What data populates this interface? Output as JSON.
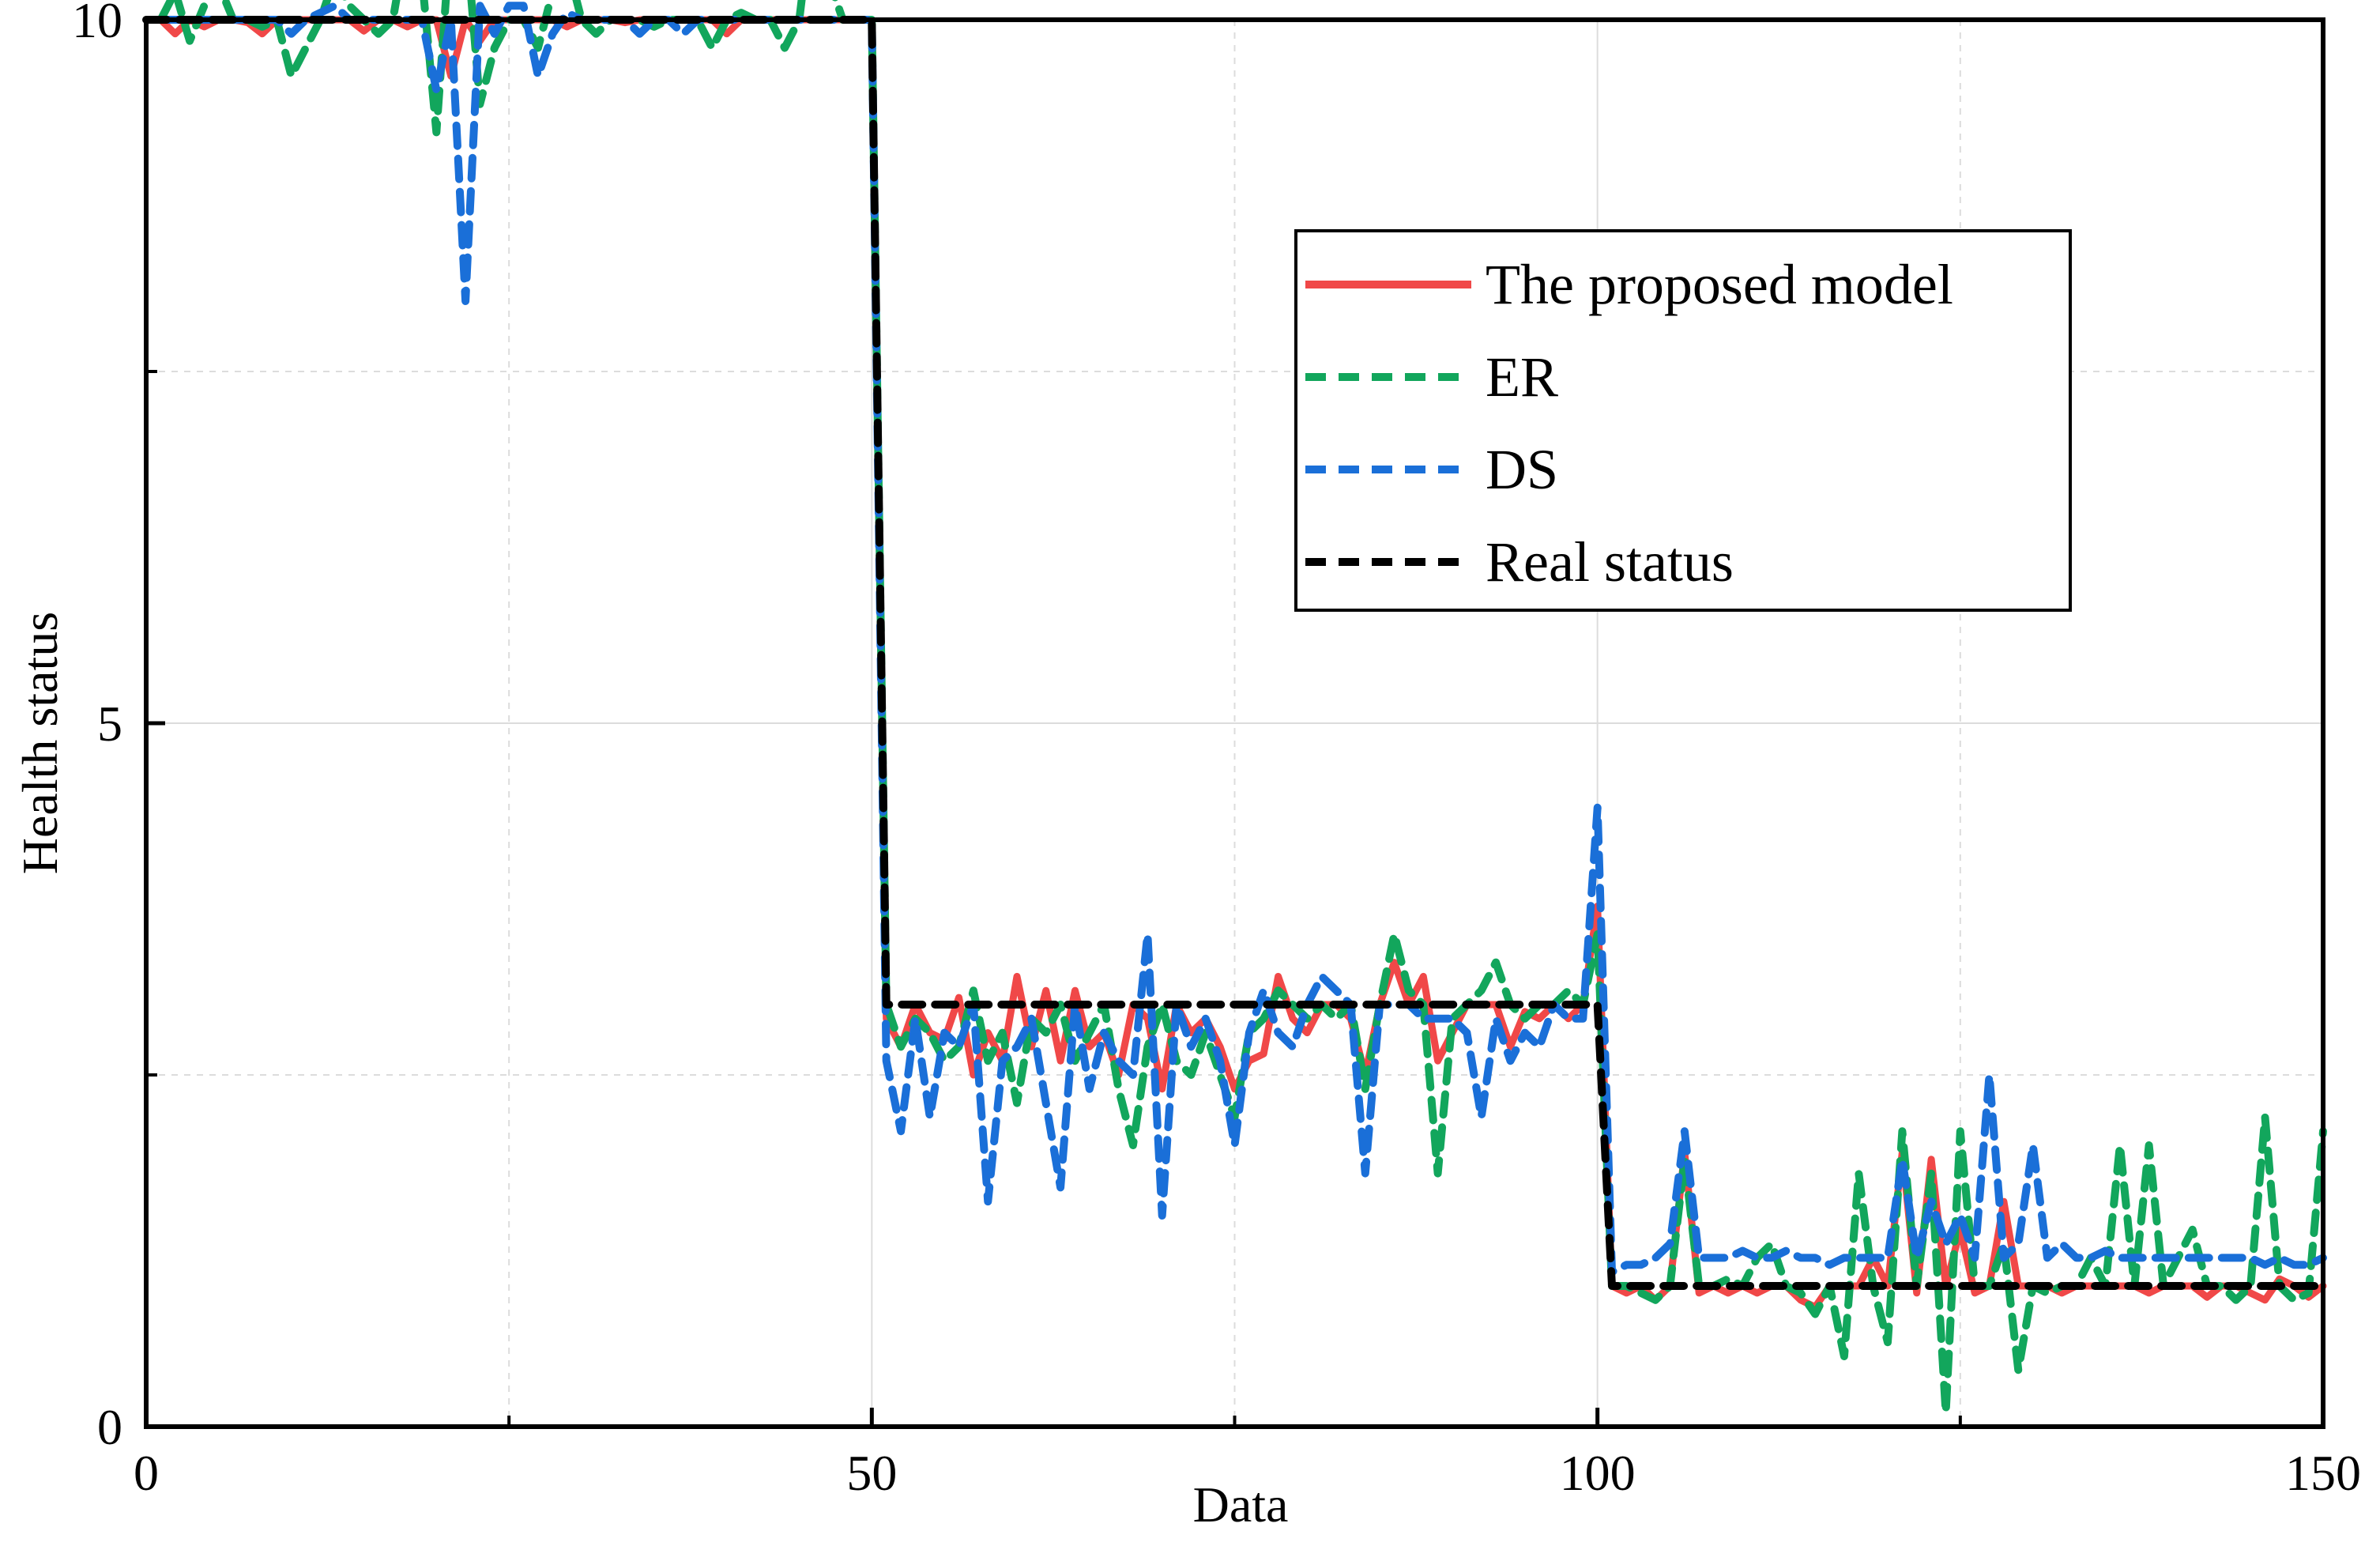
{
  "chart_data": {
    "type": "line",
    "title": "",
    "xlabel": "Data",
    "ylabel": "Health status",
    "xlim": [
      0,
      150
    ],
    "ylim": [
      0,
      10
    ],
    "x_ticks": [
      0,
      50,
      100,
      150
    ],
    "y_ticks": [
      0,
      5,
      10
    ],
    "x_tick_labels": [
      "0",
      "50",
      "100",
      "150"
    ],
    "y_tick_labels": [
      "0",
      "5",
      "10"
    ],
    "grid": true,
    "legend_position": "upper-right",
    "series": [
      {
        "name": "The proposed model",
        "color": "#f04848",
        "style": "solid",
        "x": [
          1,
          2,
          3,
          4,
          5,
          6,
          7,
          8,
          9,
          10,
          11,
          12,
          13,
          14,
          15,
          16,
          17,
          18,
          19,
          20,
          21,
          22,
          23,
          24,
          25,
          26,
          27,
          28,
          29,
          30,
          31,
          32,
          33,
          34,
          35,
          36,
          37,
          38,
          39,
          40,
          41,
          42,
          43,
          44,
          45,
          46,
          47,
          48,
          49,
          50,
          51,
          52,
          53,
          54,
          55,
          56,
          57,
          58,
          59,
          60,
          61,
          62,
          63,
          64,
          65,
          66,
          67,
          68,
          69,
          70,
          71,
          72,
          73,
          74,
          75,
          76,
          77,
          78,
          79,
          80,
          81,
          82,
          83,
          84,
          85,
          86,
          87,
          88,
          89,
          90,
          91,
          92,
          93,
          94,
          95,
          96,
          97,
          98,
          99,
          100,
          101,
          102,
          103,
          104,
          105,
          106,
          107,
          108,
          109,
          110,
          111,
          112,
          113,
          114,
          115,
          116,
          117,
          118,
          119,
          120,
          121,
          122,
          123,
          124,
          125,
          126,
          127,
          128,
          129,
          130,
          131,
          132,
          133,
          134,
          135,
          136,
          137,
          138,
          139,
          140,
          141,
          142,
          143,
          144,
          145,
          146,
          147,
          148,
          149,
          150
        ],
        "values": [
          10,
          9.9,
          10,
          9.95,
          10,
          10,
          9.98,
          9.9,
          10,
          10,
          10,
          10,
          10,
          10,
          9.92,
          10,
          10,
          9.95,
          10,
          10,
          9.6,
          10,
          9.85,
          10,
          10,
          10,
          10,
          10,
          9.95,
          10,
          10,
          10,
          9.98,
          10,
          10,
          10,
          10,
          10,
          10,
          9.9,
          10,
          10,
          10,
          10,
          10,
          10,
          10,
          10,
          10,
          10,
          2.9,
          2.7,
          3.0,
          2.8,
          2.75,
          3.05,
          2.5,
          2.8,
          2.6,
          3.2,
          2.7,
          3.1,
          2.6,
          3.1,
          2.7,
          2.8,
          2.5,
          3.0,
          2.9,
          2.4,
          3.0,
          2.8,
          2.9,
          2.7,
          2.4,
          2.6,
          2.65,
          3.2,
          2.9,
          2.8,
          3.0,
          3.0,
          2.9,
          2.5,
          3.0,
          3.3,
          3.0,
          3.2,
          2.6,
          2.8,
          3.0,
          3.0,
          3.0,
          2.7,
          2.95,
          2.9,
          3.0,
          2.9,
          3.0,
          3.7,
          1.0,
          0.95,
          1.0,
          0.9,
          1.0,
          1.95,
          0.95,
          1.0,
          0.95,
          1.0,
          0.95,
          1.0,
          1.0,
          0.9,
          0.85,
          1.0,
          1.0,
          1.0,
          1.2,
          1.0,
          1.95,
          0.95,
          1.9,
          1.0,
          1.4,
          0.95,
          1.0,
          1.6,
          1.0,
          1.0,
          1.0,
          0.95,
          1.0,
          1.0,
          1.0,
          1.0,
          1.0,
          0.95,
          1.0,
          1.0,
          1.0,
          0.92,
          1.0,
          1.0,
          0.95,
          0.9,
          1.05,
          1.0,
          0.92,
          1.0
        ]
      },
      {
        "name": "ER",
        "color": "#12a65c",
        "style": "dashed",
        "x": [
          1,
          2,
          3,
          4,
          5,
          6,
          7,
          8,
          9,
          10,
          11,
          12,
          13,
          14,
          15,
          16,
          17,
          18,
          19,
          20,
          21,
          22,
          23,
          24,
          25,
          26,
          27,
          28,
          29,
          30,
          31,
          32,
          33,
          34,
          35,
          36,
          37,
          38,
          39,
          40,
          41,
          42,
          43,
          44,
          45,
          46,
          47,
          48,
          49,
          50,
          51,
          52,
          53,
          54,
          55,
          56,
          57,
          58,
          59,
          60,
          61,
          62,
          63,
          64,
          65,
          66,
          67,
          68,
          69,
          70,
          71,
          72,
          73,
          74,
          75,
          76,
          77,
          78,
          79,
          80,
          81,
          82,
          83,
          84,
          85,
          86,
          87,
          88,
          89,
          90,
          91,
          92,
          93,
          94,
          95,
          96,
          97,
          98,
          99,
          100,
          101,
          102,
          103,
          104,
          105,
          106,
          107,
          108,
          109,
          110,
          111,
          112,
          113,
          114,
          115,
          116,
          117,
          118,
          119,
          120,
          121,
          122,
          123,
          124,
          125,
          126,
          127,
          128,
          129,
          130,
          131,
          132,
          133,
          134,
          135,
          136,
          137,
          138,
          139,
          140,
          141,
          142,
          143,
          144,
          145,
          146,
          147,
          148,
          149,
          150
        ],
        "values": [
          10,
          10.2,
          9.85,
          10.1,
          10.25,
          10,
          10,
          9.95,
          10,
          9.6,
          9.8,
          10,
          10.3,
          10.1,
          10,
          9.9,
          10,
          10.6,
          10.3,
          9.2,
          10.65,
          10.65,
          9.4,
          9.8,
          10,
          10,
          9.8,
          10.2,
          10.4,
          10,
          9.9,
          10,
          10,
          10,
          9.95,
          10,
          10,
          10,
          9.8,
          10,
          10.05,
          10,
          10,
          9.8,
          10,
          10.85,
          10.3,
          10,
          10,
          10,
          3.0,
          2.7,
          2.9,
          2.8,
          2.6,
          2.7,
          3.1,
          2.6,
          2.8,
          2.3,
          2.9,
          2.8,
          3.0,
          2.6,
          2.8,
          3.0,
          2.4,
          2.0,
          2.7,
          3.0,
          2.6,
          2.5,
          2.8,
          2.5,
          2.2,
          2.8,
          2.9,
          3.1,
          3.0,
          2.9,
          3.0,
          2.9,
          3.0,
          2.4,
          3.0,
          3.5,
          3.1,
          3.0,
          1.8,
          2.9,
          3.0,
          3.1,
          3.3,
          3.0,
          2.9,
          3.0,
          3.0,
          3.1,
          3.0,
          3.5,
          1.0,
          1.0,
          0.95,
          0.9,
          1.0,
          1.9,
          1.0,
          1.0,
          1.05,
          1.0,
          1.2,
          1.3,
          1.0,
          0.95,
          0.8,
          1.0,
          0.5,
          1.8,
          1.0,
          0.6,
          2.1,
          1.0,
          1.8,
          0.1,
          2.1,
          1.0,
          1.0,
          1.3,
          0.4,
          1.0,
          0.95,
          1.0,
          1.0,
          1.2,
          1.0,
          2.0,
          1.0,
          2.0,
          1.0,
          1.2,
          1.4,
          1.0,
          1.0,
          0.9,
          1.0,
          2.2,
          1.0,
          0.9,
          0.95,
          2.1
        ]
      },
      {
        "name": "DS",
        "color": "#1a6fd8",
        "style": "dashed",
        "x": [
          1,
          2,
          3,
          4,
          5,
          6,
          7,
          8,
          9,
          10,
          11,
          12,
          13,
          14,
          15,
          16,
          17,
          18,
          19,
          20,
          21,
          22,
          23,
          24,
          25,
          26,
          27,
          28,
          29,
          30,
          31,
          32,
          33,
          34,
          35,
          36,
          37,
          38,
          39,
          40,
          41,
          42,
          43,
          44,
          45,
          46,
          47,
          48,
          49,
          50,
          51,
          52,
          53,
          54,
          55,
          56,
          57,
          58,
          59,
          60,
          61,
          62,
          63,
          64,
          65,
          66,
          67,
          68,
          69,
          70,
          71,
          72,
          73,
          74,
          75,
          76,
          77,
          78,
          79,
          80,
          81,
          82,
          83,
          84,
          85,
          86,
          87,
          88,
          89,
          90,
          91,
          92,
          93,
          94,
          95,
          96,
          97,
          98,
          99,
          100,
          101,
          102,
          103,
          104,
          105,
          106,
          107,
          108,
          109,
          110,
          111,
          112,
          113,
          114,
          115,
          116,
          117,
          118,
          119,
          120,
          121,
          122,
          123,
          124,
          125,
          126,
          127,
          128,
          129,
          130,
          131,
          132,
          133,
          134,
          135,
          136,
          137,
          138,
          139,
          140,
          141,
          142,
          143,
          144,
          145,
          146,
          147,
          148,
          149,
          150
        ],
        "values": [
          10,
          10,
          10,
          10,
          10,
          10,
          10,
          10,
          10,
          9.9,
          10,
          10.05,
          10.1,
          10,
          10,
          10,
          10,
          10,
          10,
          9.5,
          10,
          8.0,
          10.1,
          9.9,
          10.1,
          10.1,
          9.6,
          9.9,
          10.05,
          10,
          10,
          10,
          10,
          9.9,
          10,
          10,
          9.9,
          10,
          10,
          10,
          10,
          10,
          10,
          10,
          10,
          10,
          10,
          10,
          10,
          10,
          2.6,
          2.1,
          2.9,
          2.2,
          2.8,
          2.7,
          3.0,
          1.6,
          2.6,
          2.7,
          2.9,
          2.3,
          1.7,
          3.0,
          2.4,
          2.8,
          2.6,
          2.5,
          3.5,
          1.5,
          3.0,
          2.7,
          2.9,
          2.6,
          2.0,
          2.8,
          3.1,
          2.8,
          2.7,
          3.0,
          3.2,
          3.1,
          3.0,
          1.8,
          3.0,
          3.0,
          3.0,
          2.9,
          2.9,
          2.9,
          2.8,
          2.2,
          2.9,
          2.6,
          2.8,
          2.7,
          3.0,
          2.9,
          2.9,
          4.4,
          1.1,
          1.15,
          1.15,
          1.2,
          1.3,
          2.1,
          1.2,
          1.2,
          1.2,
          1.25,
          1.2,
          1.2,
          1.25,
          1.2,
          1.2,
          1.15,
          1.2,
          1.2,
          1.2,
          1.2,
          1.9,
          1.2,
          1.6,
          1.3,
          1.5,
          1.2,
          2.5,
          1.2,
          1.3,
          2.0,
          1.2,
          1.3,
          1.2,
          1.2,
          1.25,
          1.2,
          1.2,
          1.2,
          1.2,
          1.2,
          1.2,
          1.2,
          1.2,
          1.2,
          1.2,
          1.15,
          1.2,
          1.15,
          1.15,
          1.2
        ]
      },
      {
        "name": "Real status",
        "color": "#000000",
        "style": "dashed",
        "x": [
          0,
          50,
          51,
          100,
          101,
          150
        ],
        "values": [
          10,
          10,
          3,
          3,
          1,
          1
        ]
      }
    ]
  }
}
